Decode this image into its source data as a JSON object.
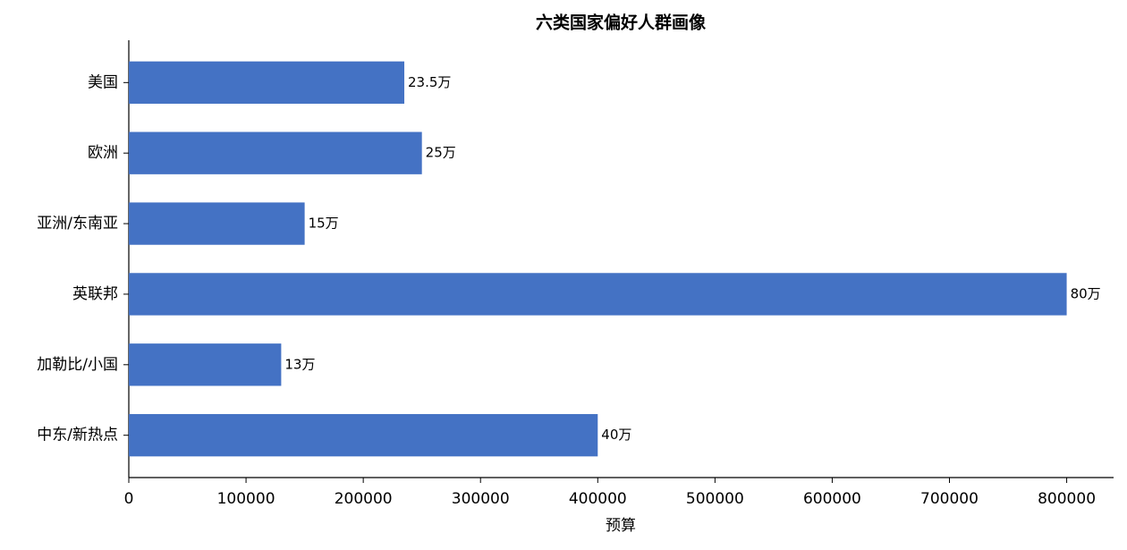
{
  "chart_data": {
    "type": "barh",
    "title": "六类国家偏好人群画像",
    "xlabel": "预算",
    "categories": [
      "美国",
      "欧洲",
      "亚洲/东南亚",
      "英联邦",
      "加勒比/小国",
      "中东/新热点"
    ],
    "values": [
      235000,
      250000,
      150000,
      800000,
      130000,
      400000
    ],
    "value_labels": [
      "23.5万",
      "25万",
      "15万",
      "80万",
      "13万",
      "40万"
    ],
    "color": "#4472c4",
    "xlim": [
      0,
      840000
    ],
    "xticks": [
      0,
      100000,
      200000,
      300000,
      400000,
      500000,
      600000,
      700000,
      800000
    ],
    "grid": false
  }
}
